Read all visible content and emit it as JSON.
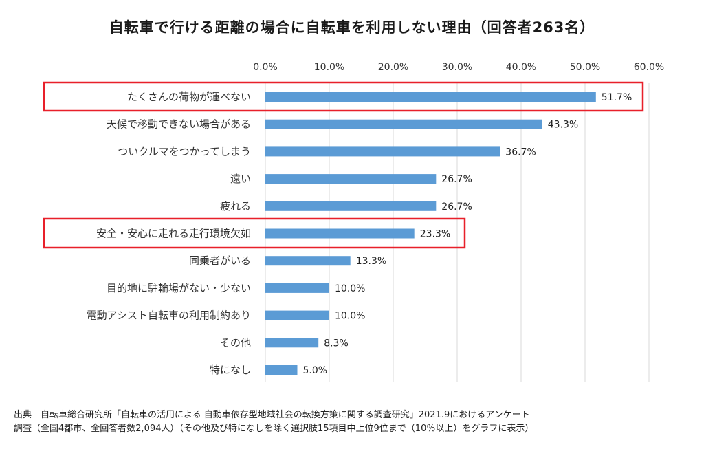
{
  "chart_data": {
    "type": "bar",
    "orientation": "horizontal",
    "title": "自転車で行ける距離の場合に自転車を利用しない理由（回答者263名）",
    "categories": [
      "たくさんの荷物が運べない",
      "天候で移動できない場合がある",
      "ついクルマをつかってしまう",
      "遠い",
      "疲れる",
      "安全・安心に走れる走行環境欠如",
      "同乗者がいる",
      "目的地に駐輪場がない・少ない",
      "電動アシスト自転車の利用制約あり",
      "その他",
      "特になし"
    ],
    "values": [
      51.7,
      43.3,
      36.7,
      26.7,
      26.7,
      23.3,
      13.3,
      10.0,
      10.0,
      8.3,
      5.0
    ],
    "value_labels": [
      "51.7%",
      "43.3%",
      "36.7%",
      "26.7%",
      "26.7%",
      "23.3%",
      "13.3%",
      "10.0%",
      "10.0%",
      "8.3%",
      "5.0%"
    ],
    "x_ticks": [
      "0.0%",
      "10.0%",
      "20.0%",
      "30.0%",
      "40.0%",
      "50.0%",
      "60.0%"
    ],
    "xlim": [
      0,
      60
    ],
    "x_axis_position": "top",
    "grid": true,
    "bar_color": "#5b9bd5",
    "grid_color": "#d9d9d9",
    "highlight_color": "#e8202a",
    "highlighted_categories": [
      0,
      5
    ]
  },
  "source_note": {
    "line1": "出典　自転車総合研究所「自転車の活用による 自動車依存型地域社会の転換方策に関する調査研究」2021.9におけるアンケート",
    "line2": "調査（全国4都市、全回答者数2,094人）（その他及び特になしを除く選択肢15項目中上位9位まで（10％以上）をグラフに表示）"
  }
}
